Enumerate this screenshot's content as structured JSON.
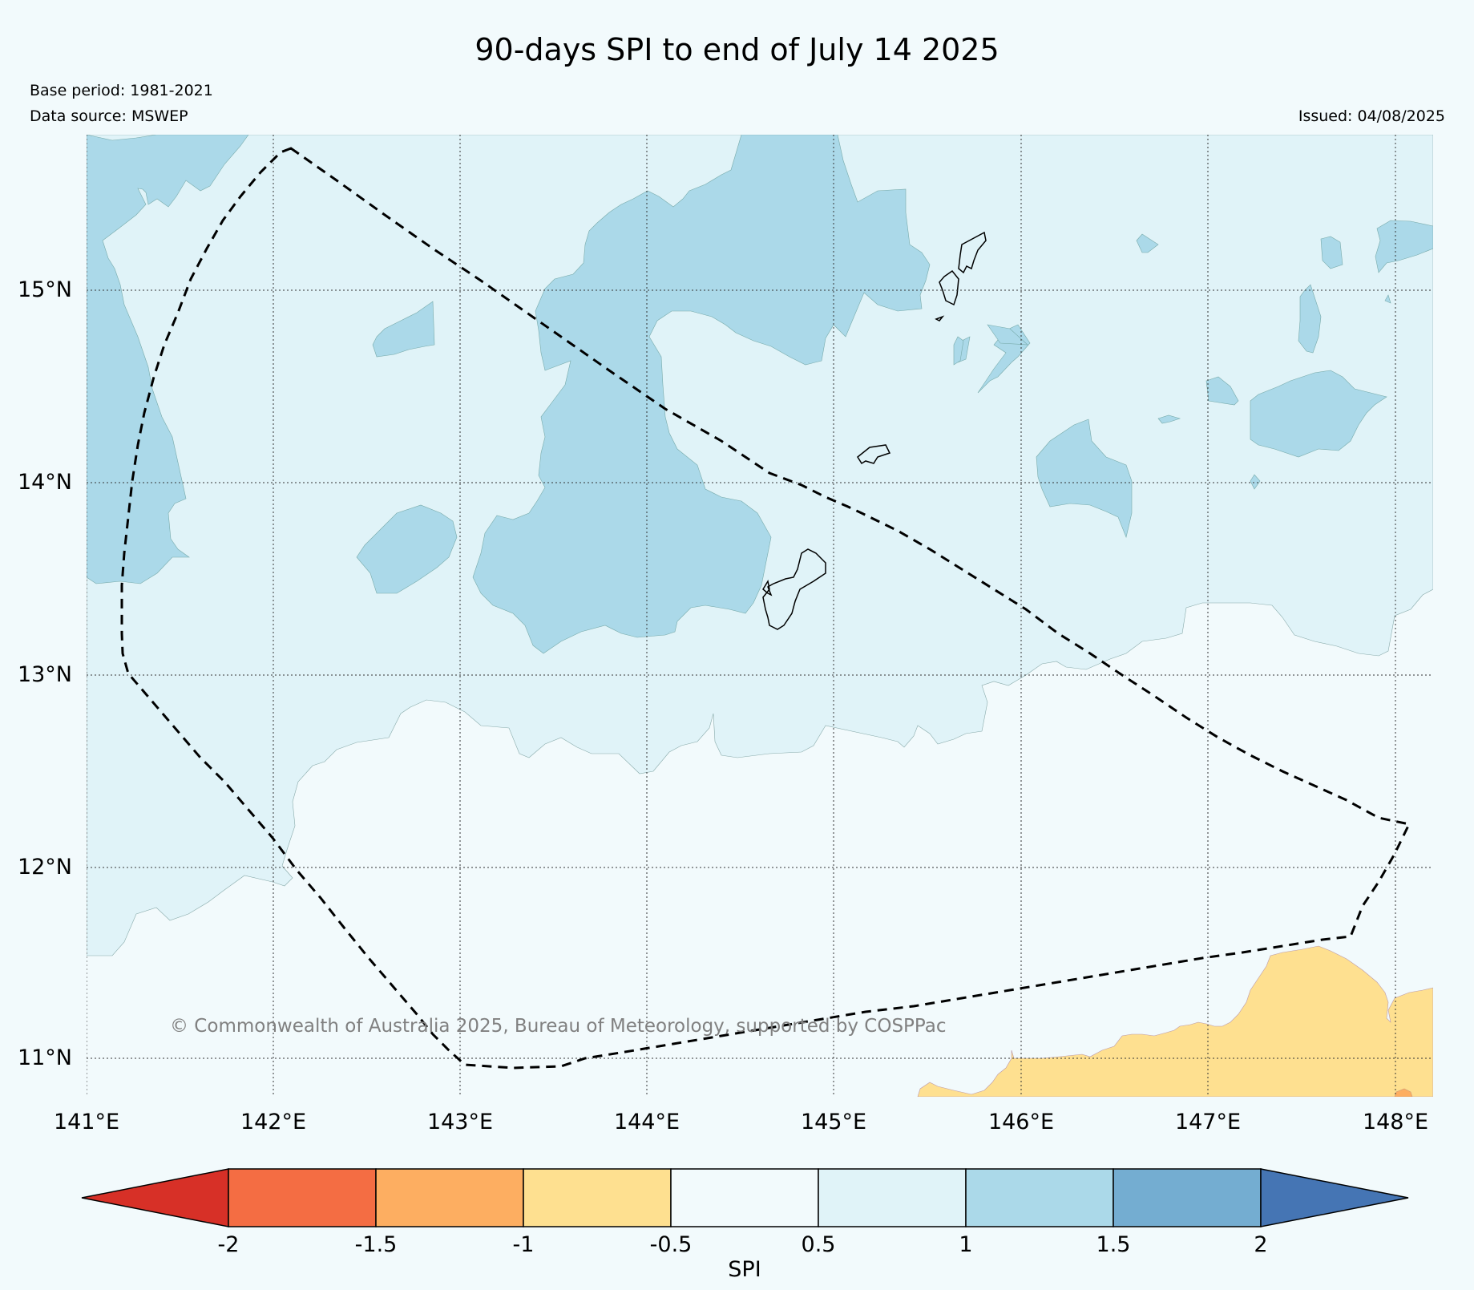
{
  "header": {
    "title": "90-days SPI to end of July 14 2025",
    "base_period": "Base period: 1981-2021",
    "data_source": "Data source: MSWEP",
    "issued": "Issued: 04/08/2025"
  },
  "map": {
    "lon_ticks": [
      "141°E",
      "142°E",
      "143°E",
      "144°E",
      "145°E",
      "146°E",
      "147°E",
      "148°E"
    ],
    "lat_ticks": [
      "15°N",
      "14°N",
      "13°N",
      "12°N",
      "11°N"
    ],
    "copyright": "© Commonwealth of Australia 2025, Bureau of Meteorology, supported by COSPPac",
    "gridlines": "dotted"
  },
  "colorbar": {
    "label": "SPI",
    "ticks": [
      "-2",
      "-1.5",
      "-1",
      "-0.5",
      "0.5",
      "1",
      "1.5",
      "2"
    ],
    "colors": {
      "below_-2": "#d73027",
      "-2_to_-1.5": "#f46d43",
      "-1.5_to_-1": "#fdae61",
      "-1_to_-0.5": "#fee090",
      "-0.5_to_0.5": "#f2fafc",
      "0.5_to_1": "#e0f3f8",
      "1_to_1.5": "#abd9e9",
      "1.5_to_2": "#74add1",
      "above_2": "#4575b4"
    }
  }
}
